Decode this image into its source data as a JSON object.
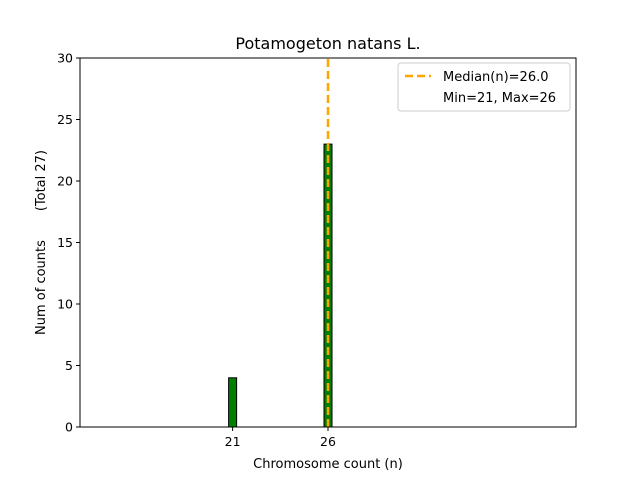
{
  "chart_data": {
    "type": "bar",
    "title": "Potamogeton natans L.",
    "xlabel": "Chromosome count (n)",
    "ylabel": "Num of counts       (Total 27)",
    "x": [
      21,
      26
    ],
    "values": [
      4,
      23
    ],
    "xticks": [
      "21",
      "26"
    ],
    "yticks": [
      0,
      5,
      10,
      15,
      20,
      25,
      30
    ],
    "ylim": [
      0,
      30
    ],
    "xlim": [
      13,
      39
    ],
    "bar_color": "#008000",
    "bar_edge": "#000000",
    "median": 26.0,
    "median_color": "#ffa500",
    "legend": {
      "position": "top-right",
      "entries": [
        "Median(n)=26.0",
        "Min=21, Max=26"
      ]
    },
    "grid": false
  }
}
